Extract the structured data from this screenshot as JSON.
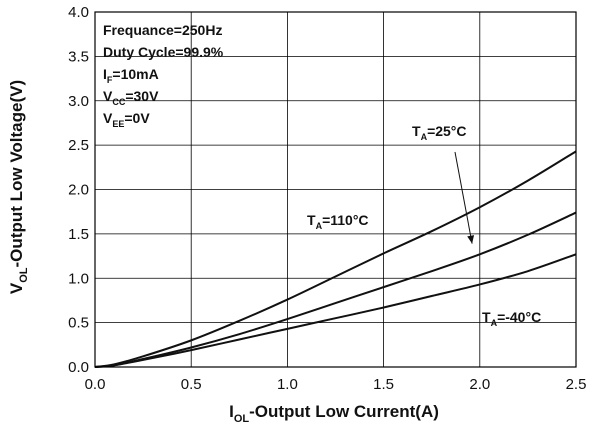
{
  "chart_data": {
    "type": "line",
    "xlabel": {
      "main": "I",
      "sub": "OL",
      "rest": "-Output Low Current(A)"
    },
    "ylabel": {
      "main": "V",
      "sub": "OL",
      "rest": "-Output Low Voltage(V)"
    },
    "xlim": [
      0,
      2.5
    ],
    "ylim": [
      0,
      4.0
    ],
    "xticks": [
      "0.0",
      "0.5",
      "1.0",
      "1.5",
      "2.0",
      "2.5"
    ],
    "yticks": [
      "0.0",
      "0.5",
      "1.0",
      "1.5",
      "2.0",
      "2.5",
      "3.0",
      "3.5",
      "4.0"
    ],
    "grid": true,
    "conditions": [
      {
        "main": "Frequance=250Hz"
      },
      {
        "main": "Duty Cycle=99.9%"
      },
      {
        "main": "I",
        "sub": "F",
        "rest": "=10mA"
      },
      {
        "main": "V",
        "sub": "CC",
        "rest": "=30V"
      },
      {
        "main": "V",
        "sub": "EE",
        "rest": "=0V"
      }
    ],
    "series": [
      {
        "name": "T_A=110°C",
        "label": {
          "main": "T",
          "sub": "A",
          "rest": "=110°C"
        },
        "x": [
          0,
          0.1,
          0.25,
          0.5,
          0.75,
          1.0,
          1.25,
          1.5,
          1.75,
          2.0,
          2.25,
          2.5
        ],
        "y": [
          0,
          0.03,
          0.12,
          0.3,
          0.52,
          0.76,
          1.02,
          1.28,
          1.53,
          1.8,
          2.1,
          2.43
        ]
      },
      {
        "name": "T_A=25°C",
        "label": {
          "main": "T",
          "sub": "A",
          "rest": "=25°C"
        },
        "x": [
          0,
          0.1,
          0.25,
          0.5,
          0.75,
          1.0,
          1.25,
          1.5,
          1.75,
          2.0,
          2.25,
          2.5
        ],
        "y": [
          0,
          0.02,
          0.09,
          0.22,
          0.37,
          0.54,
          0.72,
          0.9,
          1.08,
          1.27,
          1.49,
          1.74
        ]
      },
      {
        "name": "T_A=-40°C",
        "label": {
          "main": "T",
          "sub": "A",
          "rest": "=-40°C"
        },
        "x": [
          0,
          0.1,
          0.25,
          0.5,
          0.75,
          1.0,
          1.25,
          1.5,
          1.75,
          2.0,
          2.25,
          2.5
        ],
        "y": [
          0,
          0.02,
          0.08,
          0.19,
          0.31,
          0.43,
          0.55,
          0.67,
          0.8,
          0.93,
          1.08,
          1.27
        ]
      }
    ],
    "annotations": [
      {
        "series": 0,
        "at": "left-middle"
      },
      {
        "series": 1,
        "at": "top-right",
        "arrow": true,
        "arrow_to_x": 2.0
      },
      {
        "series": 2,
        "at": "bottom-right"
      }
    ],
    "colors": {
      "line": "#111111",
      "grid": "#000000",
      "background": "#ffffff"
    }
  }
}
